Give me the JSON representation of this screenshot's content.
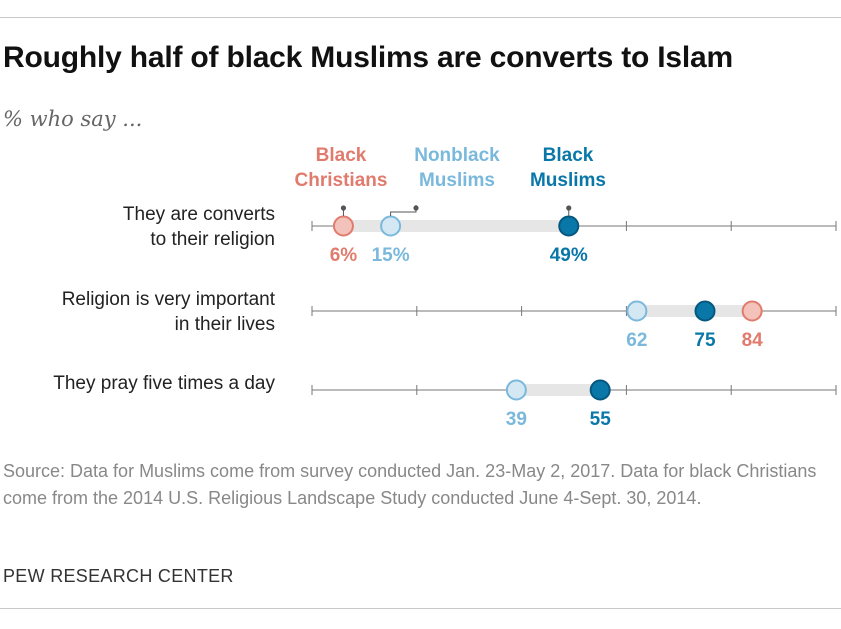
{
  "title": "Roughly half of black Muslims are converts to Islam",
  "subtitle": "% who say ...",
  "source": "Source: Data for Muslims come from survey conducted Jan. 23-May 2, 2017. Data for black Christians come from the 2014 U.S. Religious Landscape Study conducted June 4-Sept. 30, 2014.",
  "credit": "PEW RESEARCH CENTER",
  "colors": {
    "black_christians": "#e07b6d",
    "nonblack_muslims": "#7ab8dc",
    "black_muslims": "#0a77a9",
    "range_bar": "#e6e6e6",
    "axis": "#777777"
  },
  "chart_data": {
    "type": "dot",
    "xlim": [
      0,
      100
    ],
    "grid": false,
    "legend": "top, above first row",
    "series": [
      {
        "name": "Black Christians",
        "color": "#e07b6d",
        "legend_lines": [
          "Black",
          "Christians"
        ]
      },
      {
        "name": "Nonblack Muslims",
        "color": "#7ab8dc",
        "legend_lines": [
          "Nonblack",
          "Muslims"
        ]
      },
      {
        "name": "Black Muslims",
        "color": "#0a77a9",
        "legend_lines": [
          "Black",
          "Muslims"
        ]
      }
    ],
    "categories": [
      {
        "label_lines": [
          "They are converts",
          "to their religion"
        ],
        "values": {
          "Black Christians": 6,
          "Nonblack Muslims": 15,
          "Black Muslims": 49
        },
        "value_labels": {
          "Black Christians": "6%",
          "Nonblack Muslims": "15%",
          "Black Muslims": "49%"
        }
      },
      {
        "label_lines": [
          "Religion is very important",
          "in their lives"
        ],
        "values": {
          "Nonblack Muslims": 62,
          "Black Muslims": 75,
          "Black Christians": 84
        },
        "value_labels": {
          "Nonblack Muslims": "62",
          "Black Muslims": "75",
          "Black Christians": "84"
        }
      },
      {
        "label_lines": [
          "They pray five times a day"
        ],
        "values": {
          "Nonblack Muslims": 39,
          "Black Muslims": 55
        },
        "value_labels": {
          "Nonblack Muslims": "39",
          "Black Muslims": "55"
        }
      }
    ]
  }
}
